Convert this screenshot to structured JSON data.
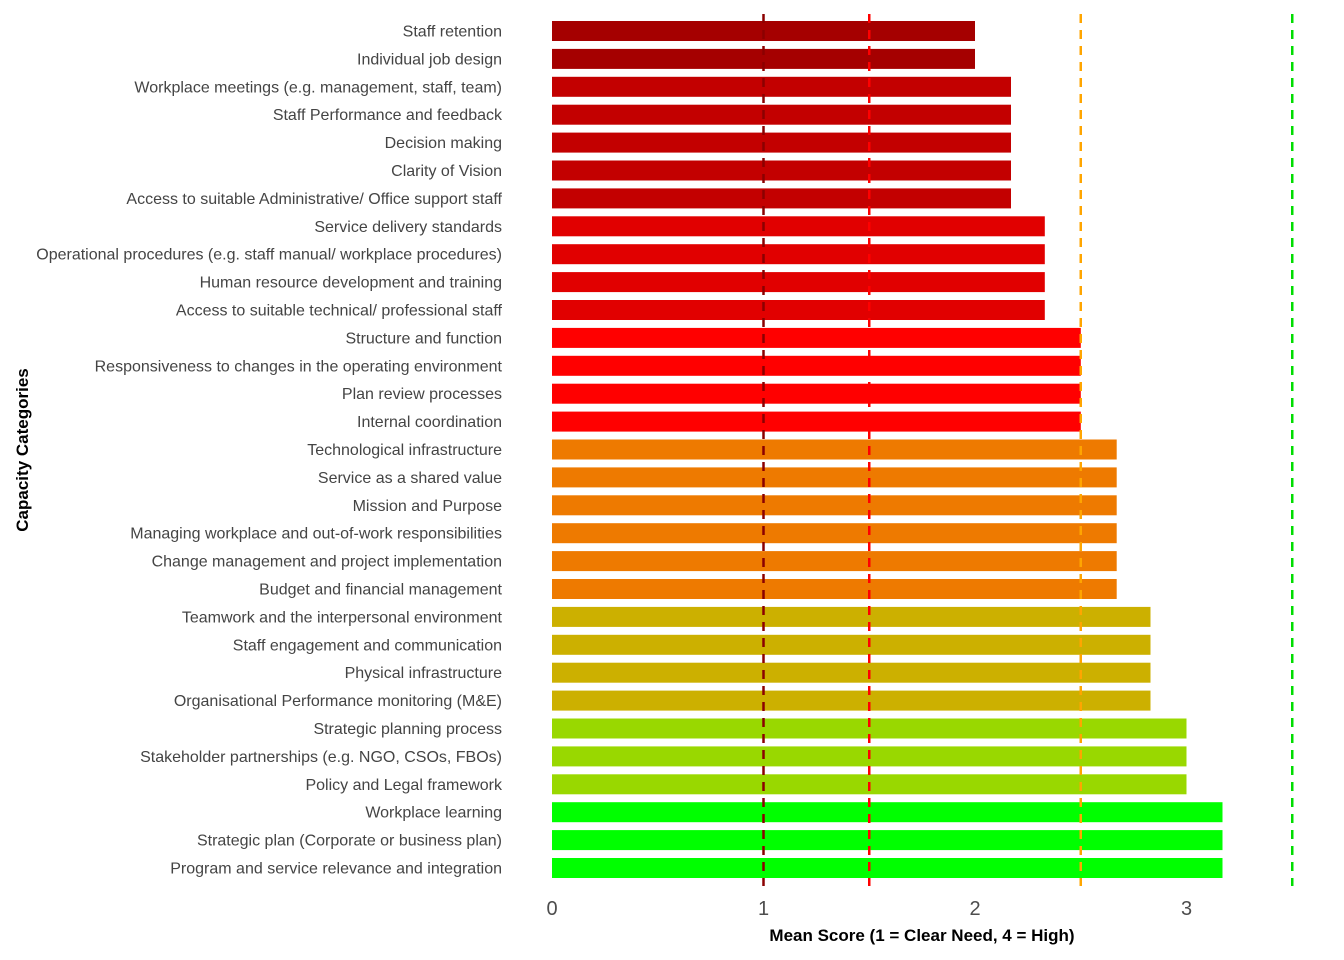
{
  "chart_data": {
    "type": "bar",
    "orientation": "horizontal",
    "xlabel": "Mean Score (1 = Clear Need, 4 = High)",
    "ylabel": "Capacity Categories",
    "xlim": [
      0,
      3.5
    ],
    "xticks": [
      0,
      1,
      2,
      3
    ],
    "grid": false,
    "legend": "none",
    "categories": [
      "Staff retention",
      "Individual job design",
      "Workplace meetings (e.g. management, staff, team)",
      "Staff Performance and feedback",
      "Decision making",
      "Clarity of Vision",
      "Access to suitable Administrative/ Office support staff",
      "Service delivery standards",
      "Operational procedures (e.g. staff manual/ workplace procedures)",
      "Human resource development and training",
      "Access to suitable technical/ professional staff",
      "Structure and function",
      "Responsiveness to changes in the operating environment",
      "Plan review processes",
      "Internal coordination",
      "Technological infrastructure",
      "Service as a shared value",
      "Mission and Purpose",
      "Managing workplace and out-of-work responsibilities",
      "Change management and project implementation",
      "Budget and financial management",
      "Teamwork and the interpersonal environment",
      "Staff engagement and communication",
      "Physical infrastructure",
      "Organisational Performance monitoring (M&E)",
      "Strategic planning process",
      "Stakeholder partnerships (e.g. NGO, CSOs, FBOs)",
      "Policy and Legal framework",
      "Workplace learning",
      "Strategic plan (Corporate or business plan)",
      "Program and service relevance and integration"
    ],
    "values": [
      2.0,
      2.0,
      2.17,
      2.17,
      2.17,
      2.17,
      2.17,
      2.33,
      2.33,
      2.33,
      2.33,
      2.5,
      2.5,
      2.5,
      2.5,
      2.67,
      2.67,
      2.67,
      2.67,
      2.67,
      2.67,
      2.83,
      2.83,
      2.83,
      2.83,
      3.0,
      3.0,
      3.0,
      3.17,
      3.17,
      3.17
    ],
    "bar_colors": [
      "#a50000",
      "#a50000",
      "#c30000",
      "#c30000",
      "#c30000",
      "#c30000",
      "#c30000",
      "#e10000",
      "#e10000",
      "#e10000",
      "#e10000",
      "#ff0000",
      "#ff0000",
      "#ff0000",
      "#ff0000",
      "#ee7a00",
      "#ee7a00",
      "#ee7a00",
      "#ee7a00",
      "#ee7a00",
      "#ee7a00",
      "#ccb000",
      "#ccb000",
      "#ccb000",
      "#ccb000",
      "#99d800",
      "#99d800",
      "#99d800",
      "#00ff00",
      "#00ff00",
      "#00ff00"
    ],
    "reference_lines": [
      {
        "x": 1.0,
        "color": "#8b0000",
        "style": "dashed"
      },
      {
        "x": 1.5,
        "color": "#ff0000",
        "style": "dashed"
      },
      {
        "x": 2.5,
        "color": "#ffa500",
        "style": "dashed"
      },
      {
        "x": 3.5,
        "color": "#00dd00",
        "style": "dashed"
      }
    ]
  }
}
